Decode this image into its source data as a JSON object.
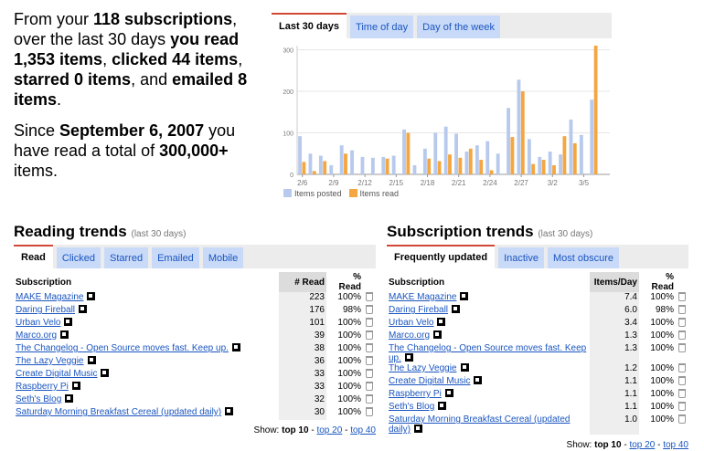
{
  "summary": {
    "p1_a": "From your ",
    "subscriptions": "118 subscriptions",
    "p1_b": ", over the last 30 days ",
    "you_read": "you read 1,353 items",
    "p1_c": ", ",
    "clicked": "clicked 44 items",
    "p1_d": ", ",
    "starred": "starred 0 items",
    "p1_e": ", and ",
    "emailed": "emailed 8 items",
    "p1_f": ".",
    "p2_a": "Since ",
    "since_date": "September 6, 2007",
    "p2_b": " you have read a total of ",
    "total": "300,000+",
    "p2_c": " items."
  },
  "chart_tabs": [
    "Last 30 days",
    "Time of day",
    "Day of the week"
  ],
  "chart_data": {
    "type": "bar",
    "categories": [
      "2/6",
      "2/7",
      "2/8",
      "2/9",
      "2/10",
      "2/11",
      "2/12",
      "2/13",
      "2/14",
      "2/15",
      "2/16",
      "2/17",
      "2/18",
      "2/19",
      "2/20",
      "2/21",
      "2/22",
      "2/23",
      "2/24",
      "2/25",
      "2/26",
      "2/27",
      "2/28",
      "3/1",
      "3/2",
      "3/3",
      "3/4",
      "3/5",
      "3/6",
      "3/7"
    ],
    "tick_labels": [
      "2/6",
      "2/9",
      "2/12",
      "2/15",
      "2/18",
      "2/21",
      "2/24",
      "2/27",
      "3/2",
      "3/5"
    ],
    "series": [
      {
        "name": "Items posted",
        "color": "#b7c9ec",
        "values": [
          92,
          50,
          45,
          22,
          70,
          58,
          42,
          40,
          42,
          45,
          108,
          22,
          62,
          100,
          115,
          98,
          55,
          70,
          80,
          50,
          160,
          228,
          85,
          42,
          55,
          48,
          132,
          95,
          180,
          0
        ]
      },
      {
        "name": "Items read",
        "color": "#f4a641",
        "values": [
          30,
          8,
          32,
          0,
          50,
          0,
          0,
          0,
          38,
          0,
          100,
          0,
          38,
          32,
          48,
          40,
          62,
          35,
          10,
          0,
          90,
          200,
          25,
          35,
          22,
          92,
          75,
          0,
          310,
          0
        ]
      }
    ],
    "ylim": [
      0,
      310
    ],
    "yticks": [
      0,
      100,
      200,
      300
    ],
    "grid": true,
    "legend": "bottom-left"
  },
  "reading": {
    "title": "Reading trends",
    "subtitle": "(last 30 days)",
    "tabs": [
      "Read",
      "Clicked",
      "Starred",
      "Emailed",
      "Mobile"
    ],
    "col_sub": "Subscription",
    "col_num": "# Read",
    "col_pct": "% Read",
    "rows": [
      {
        "name": "MAKE Magazine",
        "num": "223",
        "pct": "100%"
      },
      {
        "name": "Daring Fireball",
        "num": "176",
        "pct": "98%"
      },
      {
        "name": "Urban Velo",
        "num": "101",
        "pct": "100%"
      },
      {
        "name": "Marco.org",
        "num": "39",
        "pct": "100%"
      },
      {
        "name": "The Changelog - Open Source moves fast. Keep up.",
        "num": "38",
        "pct": "100%"
      },
      {
        "name": "The Lazy Veggie",
        "num": "36",
        "pct": "100%"
      },
      {
        "name": "Create Digital Music",
        "num": "33",
        "pct": "100%"
      },
      {
        "name": "Raspberry Pi",
        "num": "33",
        "pct": "100%"
      },
      {
        "name": "Seth's Blog",
        "num": "32",
        "pct": "100%"
      },
      {
        "name": "Saturday Morning Breakfast Cereal (updated daily)",
        "num": "30",
        "pct": "100%"
      }
    ],
    "show_label": "Show:",
    "show_current": "top 10",
    "show_sep1": "-",
    "show_20": "top 20",
    "show_sep2": "-",
    "show_40": "top 40"
  },
  "subs": {
    "title": "Subscription trends",
    "subtitle": "(last 30 days)",
    "tabs": [
      "Frequently updated",
      "Inactive",
      "Most obscure"
    ],
    "col_sub": "Subscription",
    "col_num": "Items/Day",
    "col_pct": "% Read",
    "rows": [
      {
        "name": "MAKE Magazine",
        "num": "7.4",
        "pct": "100%"
      },
      {
        "name": "Daring Fireball",
        "num": "6.0",
        "pct": "98%"
      },
      {
        "name": "Urban Velo",
        "num": "3.4",
        "pct": "100%"
      },
      {
        "name": "Marco.org",
        "num": "1.3",
        "pct": "100%"
      },
      {
        "name": "The Changelog - Open Source moves fast. Keep up.",
        "num": "1.3",
        "pct": "100%"
      },
      {
        "name": "The Lazy Veggie",
        "num": "1.2",
        "pct": "100%"
      },
      {
        "name": "Create Digital Music",
        "num": "1.1",
        "pct": "100%"
      },
      {
        "name": "Raspberry Pi",
        "num": "1.1",
        "pct": "100%"
      },
      {
        "name": "Seth's Blog",
        "num": "1.1",
        "pct": "100%"
      },
      {
        "name": "Saturday Morning Breakfast Cereal (updated daily)",
        "num": "1.0",
        "pct": "100%"
      }
    ],
    "show_label": "Show:",
    "show_current": "top 10",
    "show_sep1": "-",
    "show_20": "top 20",
    "show_sep2": "-",
    "show_40": "top 40"
  }
}
